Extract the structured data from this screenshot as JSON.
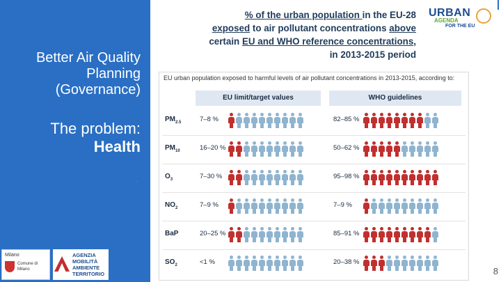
{
  "left_panel": {
    "title": "Better Air Quality Planning (Governance)",
    "problem_prefix": "The problem:",
    "problem_topic": "Health",
    "accent_color": "#2a6fc4"
  },
  "headline": {
    "part1": "% of the urban population ",
    "part2": "in the EU-28 ",
    "part3": "exposed",
    "part4": " to air pollutant concentrations ",
    "part5": "above",
    "part6": " certain ",
    "part7": "EU and WHO reference concentrations",
    "part8": ", in 2013-2015 period"
  },
  "brand": {
    "word": "URBAN",
    "sub": "AGENDA",
    "eu": "FOR THE EU"
  },
  "figure": {
    "caption": "EU urban population exposed to harmful levels of air pollutant concentrations in 2013-2015, according to:",
    "col_eu": "EU limit/target values",
    "col_who": "WHO guidelines",
    "rows": [
      {
        "pollutant": "PM",
        "sub": "2.5",
        "eu": "7–8 %",
        "who": "82–85 %",
        "eu_red": 1,
        "who_red": 8
      },
      {
        "pollutant": "PM",
        "sub": "10",
        "eu": "16–20 %",
        "who": "50–62 %",
        "eu_red": 2,
        "who_red": 5
      },
      {
        "pollutant": "O",
        "sub": "3",
        "eu": "7–30 %",
        "who": "95–98 %",
        "eu_red": 2,
        "who_red": 10
      },
      {
        "pollutant": "NO",
        "sub": "2",
        "eu": "7–9 %",
        "who": "7–9 %",
        "eu_red": 1,
        "who_red": 1
      },
      {
        "pollutant": "BaP",
        "sub": "",
        "eu": "20–25 %",
        "who": "85–91 %",
        "eu_red": 2,
        "who_red": 9
      },
      {
        "pollutant": "SO",
        "sub": "2",
        "eu": "<1 %",
        "who": "20–38 %",
        "eu_red": 0,
        "who_red": 3
      }
    ]
  },
  "footer": {
    "page_number": "8",
    "logo1": "Milano",
    "logo2": "Comune di Milano",
    "logo3": "AGENZIA MOBILITÀ AMBIENTE TERRITORIO"
  }
}
